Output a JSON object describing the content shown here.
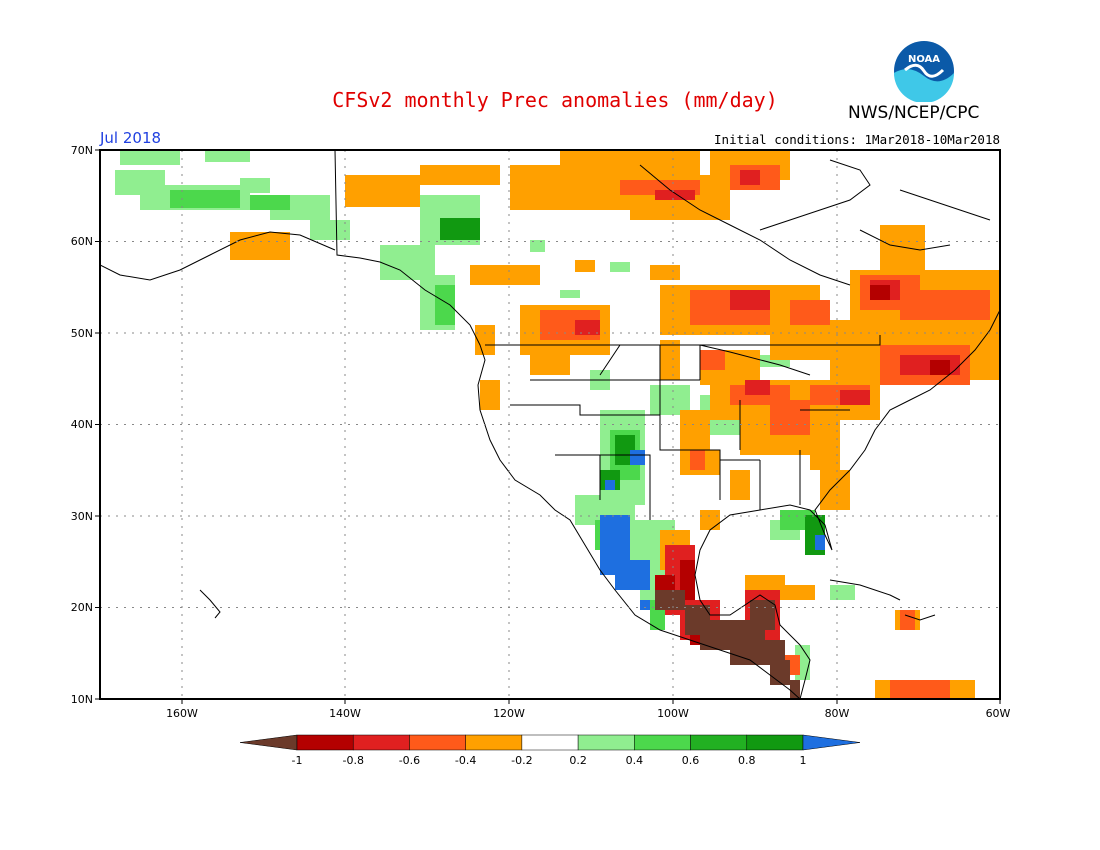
{
  "header": {
    "title": "CFSv2 monthly Prec anomalies (mm/day)",
    "agency": "NWS/NCEP/CPC",
    "month": "Jul 2018",
    "initial_conditions": "Initial conditions: 1Mar2018-10Mar2018",
    "logo_text": "NOAA"
  },
  "map": {
    "lat_labels": [
      "70N",
      "60N",
      "50N",
      "40N",
      "30N",
      "20N",
      "10N"
    ],
    "lon_labels": [
      "160W",
      "140W",
      "120W",
      "100W",
      "80W",
      "60W"
    ]
  },
  "colorbar": {
    "labels": [
      "-1",
      "-0.8",
      "-0.6",
      "-0.4",
      "-0.2",
      "0.2",
      "0.4",
      "0.6",
      "0.8",
      "1"
    ],
    "colors": [
      "#6b3a2a",
      "#b40000",
      "#e02020",
      "#ff5a1a",
      "#ffa000",
      "#ffffff",
      "#90ee90",
      "#4cd84c",
      "#22b022",
      "#119911",
      "#1e6fe0"
    ]
  },
  "colors": {
    "title": "#e00000",
    "month_label": "#2040e0",
    "noaa_blue": "#0b5aa8",
    "noaa_cyan": "#3fc8e8"
  }
}
